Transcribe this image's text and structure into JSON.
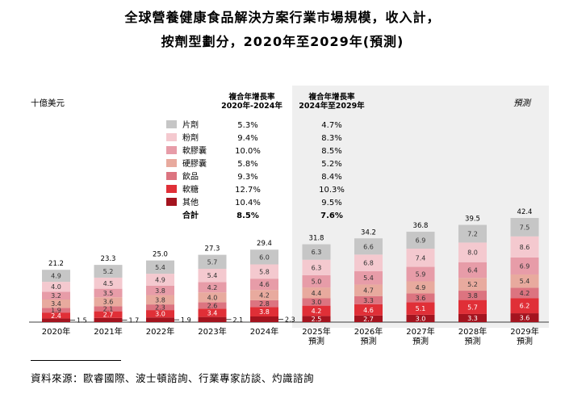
{
  "title_line1": "全球營養健康食品解決方案行業市場規模，收入計，",
  "title_line2": "按劑型劃分，2020年至2029年(預測)",
  "unit_label": "十億美元",
  "forecast_label": "預測",
  "cagr_header_hist": [
    "複合年增長率",
    "2020年-2024年"
  ],
  "cagr_header_fore": [
    "複合年增長率",
    "2024年至2029年"
  ],
  "total_label": "合計",
  "legend": [
    {
      "name": "片劑",
      "color": "#c6c6c6",
      "cagr_hist": "5.3%",
      "cagr_fore": "4.7%"
    },
    {
      "name": "粉劑",
      "color": "#f4c9cf",
      "cagr_hist": "9.4%",
      "cagr_fore": "8.3%"
    },
    {
      "name": "軟膠囊",
      "color": "#e79ca8",
      "cagr_hist": "10.0%",
      "cagr_fore": "8.5%"
    },
    {
      "name": "硬膠囊",
      "color": "#e8aa9e",
      "cagr_hist": "5.8%",
      "cagr_fore": "5.2%"
    },
    {
      "name": "飲品",
      "color": "#dc7480",
      "cagr_hist": "9.3%",
      "cagr_fore": "8.4%"
    },
    {
      "name": "軟糖",
      "color": "#e02f37",
      "cagr_hist": "12.7%",
      "cagr_fore": "10.3%"
    },
    {
      "name": "其他",
      "color": "#a4141f",
      "cagr_hist": "10.4%",
      "cagr_fore": "9.5%"
    }
  ],
  "total_cagr_hist": "8.5%",
  "total_cagr_fore": "7.6%",
  "source": "資料來源：歐睿國際、波士頓諮詢、行業專家訪談、灼識諮詢",
  "chart_data": {
    "type": "bar",
    "stacked": true,
    "categories": [
      "2020年",
      "2021年",
      "2022年",
      "2023年",
      "2024年",
      "2025年\n預測",
      "2026年\n預測",
      "2027年\n預測",
      "2028年\n預測",
      "2029年\n預測"
    ],
    "totals": [
      21.2,
      23.3,
      25.0,
      27.3,
      29.4,
      31.8,
      34.2,
      36.8,
      39.5,
      42.4
    ],
    "series": [
      {
        "name": "其他",
        "values": [
          1.5,
          1.7,
          1.9,
          2.1,
          2.3,
          2.5,
          2.7,
          3.0,
          3.3,
          3.6
        ]
      },
      {
        "name": "軟糖",
        "values": [
          2.4,
          2.7,
          3.0,
          3.4,
          3.8,
          4.2,
          4.6,
          5.1,
          5.7,
          6.2
        ]
      },
      {
        "name": "飲品",
        "values": [
          1.9,
          2.1,
          2.3,
          2.6,
          2.8,
          3.0,
          3.3,
          3.6,
          3.8,
          4.2
        ]
      },
      {
        "name": "硬膠囊",
        "values": [
          3.4,
          3.6,
          3.8,
          4.0,
          4.2,
          4.4,
          4.7,
          4.9,
          5.2,
          5.4
        ]
      },
      {
        "name": "軟膠囊",
        "values": [
          3.2,
          3.5,
          3.8,
          4.2,
          4.6,
          5.0,
          5.4,
          5.9,
          6.4,
          6.9
        ]
      },
      {
        "name": "粉劑",
        "values": [
          4.0,
          4.5,
          4.9,
          5.4,
          5.8,
          6.3,
          6.8,
          7.4,
          8.0,
          8.6
        ]
      },
      {
        "name": "片劑",
        "values": [
          4.9,
          5.2,
          5.4,
          5.7,
          6.0,
          6.3,
          6.6,
          6.9,
          7.2,
          7.5
        ]
      }
    ],
    "label_colors": [
      "#ffffff",
      "#ffffff",
      "#333333",
      "#333333",
      "#333333",
      "#333333",
      "#333333"
    ],
    "ylim": [
      0,
      42.4
    ]
  }
}
